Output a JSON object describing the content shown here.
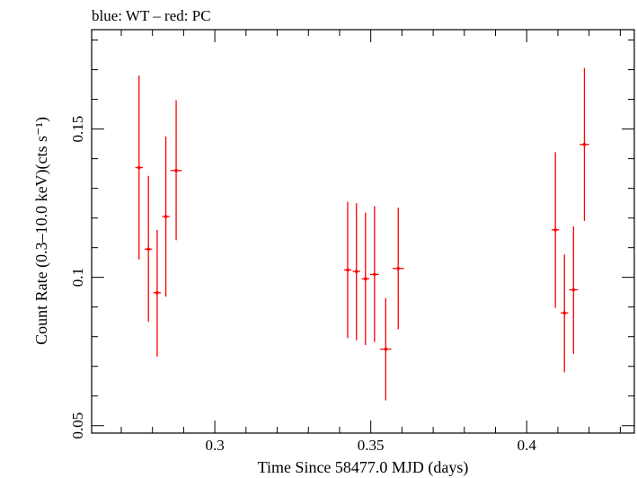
{
  "chart_data": {
    "type": "scatter",
    "title": "blue: WT – red: PC",
    "xlabel": "Time Since 58477.0 MJD (days)",
    "ylabel": "Count Rate (0.3–10.0 keV)(cts s⁻¹)",
    "xlim": [
      0.2605,
      0.4345
    ],
    "ylim": [
      0.0475,
      0.1835
    ],
    "x_ticks": [
      {
        "value": 0.3,
        "label": "0.3"
      },
      {
        "value": 0.35,
        "label": "0.35"
      },
      {
        "value": 0.4,
        "label": "0.4"
      }
    ],
    "y_ticks": [
      {
        "value": 0.05,
        "label": "0.05"
      },
      {
        "value": 0.1,
        "label": "0.1"
      },
      {
        "value": 0.15,
        "label": "0.15"
      }
    ],
    "x_minor_step": 0.01,
    "y_minor_step": 0.01,
    "grid": false,
    "series": [
      {
        "color": "#ff0000",
        "points": [
          {
            "x": 0.2757,
            "xerr": 0.0012,
            "y": 0.137,
            "ylo": 0.106,
            "yhi": 0.168
          },
          {
            "x": 0.2787,
            "xerr": 0.0012,
            "y": 0.1095,
            "ylo": 0.085,
            "yhi": 0.1342
          },
          {
            "x": 0.2815,
            "xerr": 0.0012,
            "y": 0.0948,
            "ylo": 0.0732,
            "yhi": 0.116
          },
          {
            "x": 0.2843,
            "xerr": 0.0012,
            "y": 0.1205,
            "ylo": 0.0935,
            "yhi": 0.1475
          },
          {
            "x": 0.2876,
            "xerr": 0.0018,
            "y": 0.136,
            "ylo": 0.1125,
            "yhi": 0.1597
          },
          {
            "x": 0.3426,
            "xerr": 0.0012,
            "y": 0.1025,
            "ylo": 0.0795,
            "yhi": 0.1255
          },
          {
            "x": 0.3454,
            "xerr": 0.0012,
            "y": 0.102,
            "ylo": 0.0788,
            "yhi": 0.125
          },
          {
            "x": 0.3483,
            "xerr": 0.0012,
            "y": 0.0995,
            "ylo": 0.0772,
            "yhi": 0.1218
          },
          {
            "x": 0.3512,
            "xerr": 0.0014,
            "y": 0.101,
            "ylo": 0.0782,
            "yhi": 0.124
          },
          {
            "x": 0.3548,
            "xerr": 0.0018,
            "y": 0.0758,
            "ylo": 0.0585,
            "yhi": 0.093
          },
          {
            "x": 0.3588,
            "xerr": 0.0018,
            "y": 0.103,
            "ylo": 0.0825,
            "yhi": 0.1235
          },
          {
            "x": 0.4092,
            "xerr": 0.0012,
            "y": 0.116,
            "ylo": 0.0897,
            "yhi": 0.1422
          },
          {
            "x": 0.4121,
            "xerr": 0.0012,
            "y": 0.088,
            "ylo": 0.068,
            "yhi": 0.1077
          },
          {
            "x": 0.415,
            "xerr": 0.0014,
            "y": 0.0958,
            "ylo": 0.0742,
            "yhi": 0.1172
          },
          {
            "x": 0.4185,
            "xerr": 0.0015,
            "y": 0.1448,
            "ylo": 0.119,
            "yhi": 0.1706
          }
        ]
      }
    ]
  }
}
